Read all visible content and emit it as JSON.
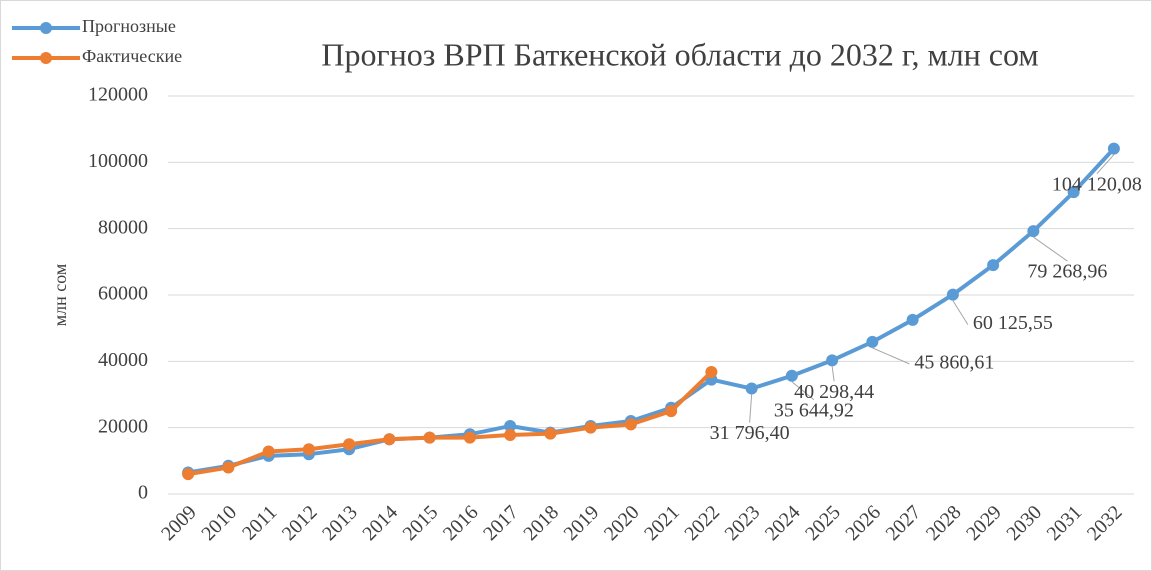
{
  "chart_data": {
    "type": "line",
    "title": "Прогноз ВРП Баткенской области до 2032 г, млн сом",
    "y_label": "млн сом",
    "categories": [
      "2009",
      "2010",
      "2011",
      "2012",
      "2013",
      "2014",
      "2015",
      "2016",
      "2017",
      "2018",
      "2019",
      "2020",
      "2021",
      "2022",
      "2023",
      "2024",
      "2025",
      "2026",
      "2027",
      "2028",
      "2029",
      "2030",
      "2031",
      "2032"
    ],
    "series": [
      {
        "name": "Прогнозные",
        "color": "#5b9bd5",
        "values": [
          6500,
          8500,
          11500,
          12000,
          13500,
          16500,
          17000,
          18000,
          20500,
          18500,
          20500,
          22000,
          26000,
          34500,
          31796.4,
          35644.92,
          40298.44,
          45860.61,
          52500,
          60125.55,
          69000,
          79268.96,
          91000,
          104120.08
        ],
        "value_labels": [
          null,
          null,
          null,
          null,
          null,
          null,
          null,
          null,
          null,
          null,
          null,
          null,
          null,
          null,
          "31 796,40",
          "35 644,92",
          "40 298,44",
          "45 860,61",
          null,
          "60 125,55",
          null,
          "79 268,96",
          null,
          "104 120,08"
        ]
      },
      {
        "name": "Фактические",
        "color": "#ed7d31",
        "values": [
          6000,
          8000,
          12800,
          13500,
          15000,
          16500,
          17000,
          17000,
          17800,
          18200,
          20000,
          21000,
          25000,
          36800,
          null,
          null,
          null,
          null,
          null,
          null,
          null,
          null,
          null,
          null
        ]
      }
    ],
    "ylim": [
      0,
      120000
    ],
    "yticks": [
      0,
      20000,
      40000,
      60000,
      80000,
      100000,
      120000
    ],
    "grid": true,
    "legend": "top-left"
  }
}
